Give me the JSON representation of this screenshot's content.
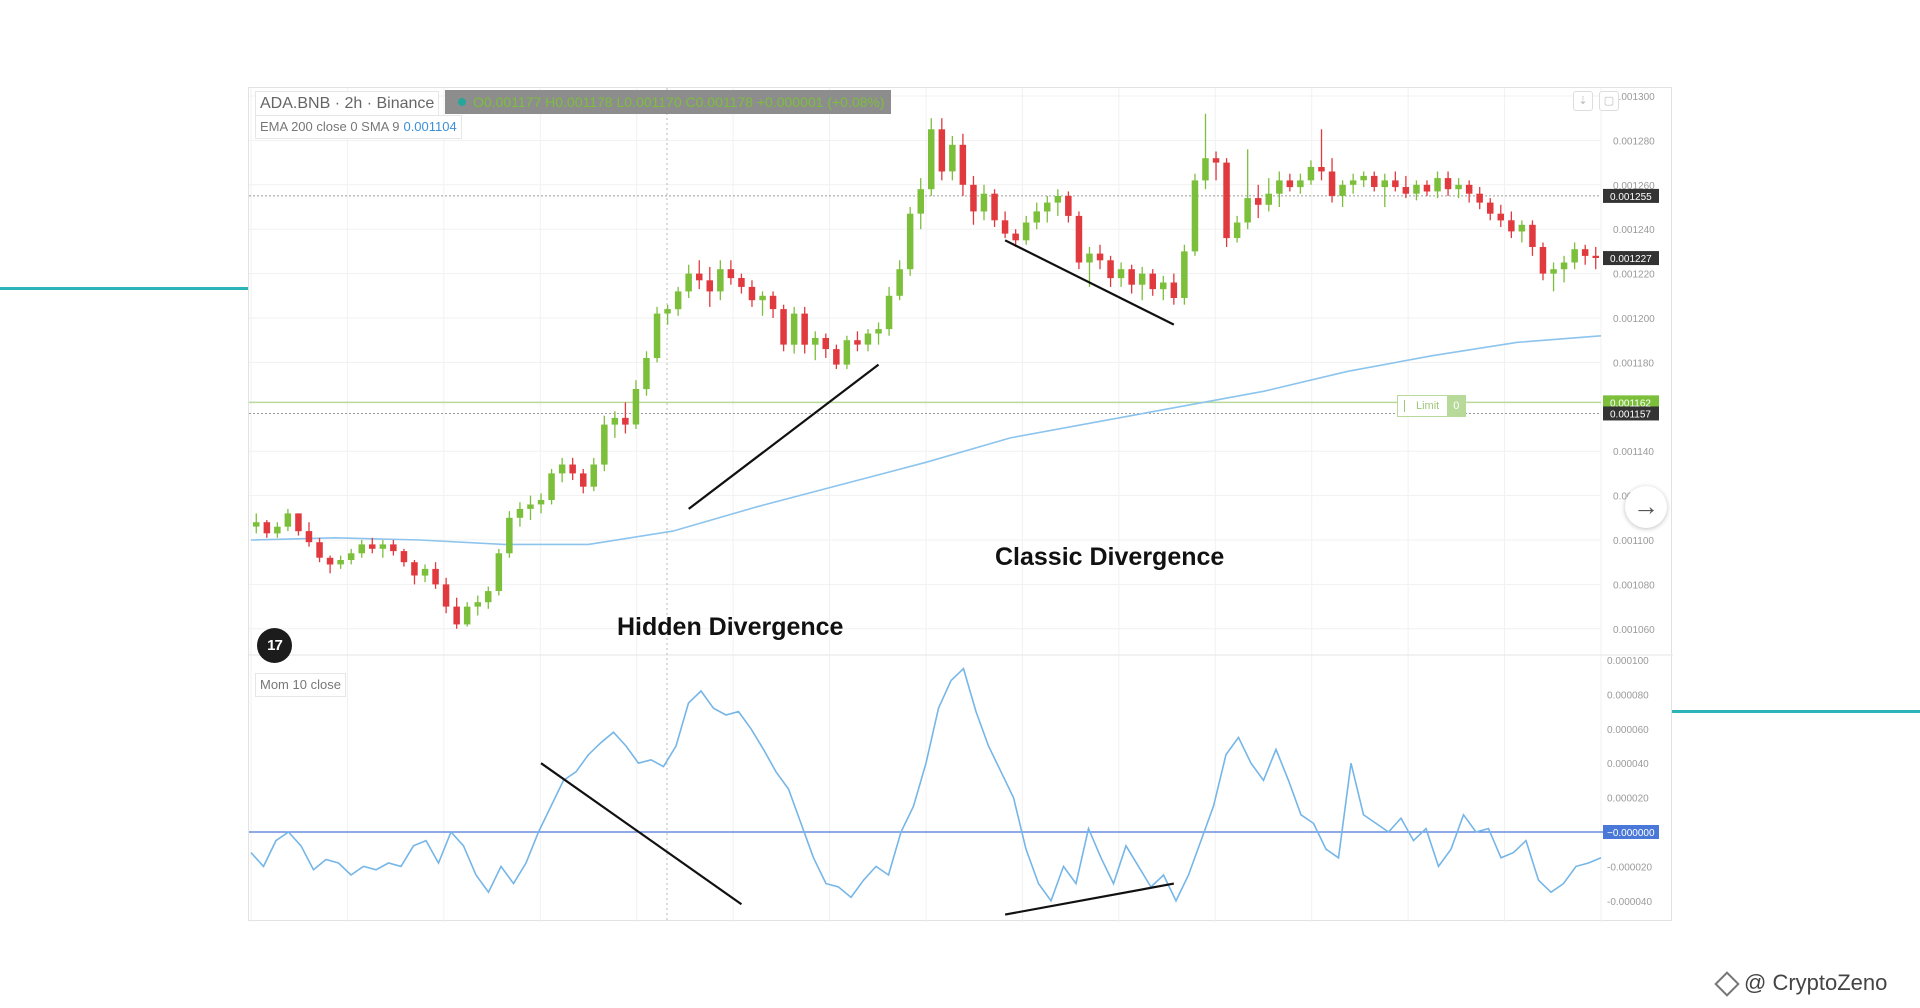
{
  "page": {
    "watermark": "@ CryptoZeno",
    "watermark_icon": "binance-diamond-icon"
  },
  "header": {
    "symbol": "ADA.BNB · 2h · Binance",
    "ohlc": "O0.001177 H0.001178 L0.001170 C0.001178 +0.000001 (+0.08%)",
    "ema_label": "EMA 200 close 0 SMA 9",
    "ema_value": "0.001104",
    "mom_label": "Mom 10 close"
  },
  "annotations": {
    "classic": "Classic Divergence",
    "hidden": "Hidden Divergence"
  },
  "limit_order": {
    "label": "Limit",
    "qty": "0"
  },
  "logo_text": "17",
  "colors": {
    "up": "#7cbf3b",
    "down": "#e0393e",
    "ema": "#8cc4ee",
    "mom": "#75b6e8",
    "zero_line": "#4a78d8",
    "limit": "#7cbf3b",
    "deco": "#2bb3b7"
  },
  "chart_data": {
    "type": "candlestick",
    "price_axis": {
      "ticks": [
        "0.001300",
        "0.001280",
        "0.001260",
        "0.001240",
        "0.001220",
        "0.001200",
        "0.001180",
        "0.001140",
        "0.001120",
        "0.001100",
        "0.001080",
        "0.001060"
      ],
      "ylim": [
        0.00105,
        0.0013
      ],
      "badges": [
        {
          "text": "0.001255",
          "value": 0.001255,
          "color": "#333333"
        },
        {
          "text": "0.001227",
          "value": 0.001227,
          "color": "#333333"
        },
        {
          "text": "0.001162",
          "value": 0.001162,
          "color": "#7cbf3b"
        },
        {
          "text": "0.001157",
          "value": 0.001157,
          "color": "#333333"
        }
      ]
    },
    "candles": [
      [
        0.001106,
        0.001112,
        0.001103,
        0.001108
      ],
      [
        0.001108,
        0.001109,
        0.001101,
        0.001103
      ],
      [
        0.001103,
        0.001108,
        0.001101,
        0.001106
      ],
      [
        0.001106,
        0.001114,
        0.001104,
        0.001112
      ],
      [
        0.001112,
        0.001112,
        0.001102,
        0.001104
      ],
      [
        0.001104,
        0.001108,
        0.001097,
        0.001099
      ],
      [
        0.001099,
        0.001101,
        0.00109,
        0.001092
      ],
      [
        0.001092,
        0.001093,
        0.001085,
        0.001089
      ],
      [
        0.001089,
        0.001093,
        0.001087,
        0.001091
      ],
      [
        0.001091,
        0.001096,
        0.001089,
        0.001094
      ],
      [
        0.001094,
        0.0011,
        0.001092,
        0.001098
      ],
      [
        0.001098,
        0.001101,
        0.001094,
        0.001096
      ],
      [
        0.001096,
        0.0011,
        0.001092,
        0.001098
      ],
      [
        0.001098,
        0.0011,
        0.001093,
        0.001095
      ],
      [
        0.001095,
        0.001096,
        0.001088,
        0.00109
      ],
      [
        0.00109,
        0.001091,
        0.00108,
        0.001084
      ],
      [
        0.001084,
        0.001089,
        0.001081,
        0.001087
      ],
      [
        0.001087,
        0.00109,
        0.001078,
        0.00108
      ],
      [
        0.00108,
        0.001083,
        0.001067,
        0.00107
      ],
      [
        0.00107,
        0.001074,
        0.00106,
        0.001062
      ],
      [
        0.001062,
        0.001072,
        0.001061,
        0.00107
      ],
      [
        0.00107,
        0.001075,
        0.001066,
        0.001072
      ],
      [
        0.001072,
        0.001079,
        0.001069,
        0.001077
      ],
      [
        0.001077,
        0.001096,
        0.001075,
        0.001094
      ],
      [
        0.001094,
        0.001113,
        0.001092,
        0.00111
      ],
      [
        0.00111,
        0.001117,
        0.001106,
        0.001114
      ],
      [
        0.001114,
        0.00112,
        0.001109,
        0.001116
      ],
      [
        0.001116,
        0.001121,
        0.001112,
        0.001118
      ],
      [
        0.001118,
        0.001132,
        0.001116,
        0.00113
      ],
      [
        0.00113,
        0.001137,
        0.001126,
        0.001134
      ],
      [
        0.001134,
        0.001137,
        0.001127,
        0.00113
      ],
      [
        0.00113,
        0.001132,
        0.001121,
        0.001124
      ],
      [
        0.001124,
        0.001137,
        0.001122,
        0.001134
      ],
      [
        0.001134,
        0.001156,
        0.001131,
        0.001152
      ],
      [
        0.001152,
        0.001158,
        0.001146,
        0.001155
      ],
      [
        0.001155,
        0.001162,
        0.001148,
        0.001152
      ],
      [
        0.001152,
        0.001172,
        0.00115,
        0.001168
      ],
      [
        0.001168,
        0.001185,
        0.001165,
        0.001182
      ],
      [
        0.001182,
        0.001205,
        0.00118,
        0.001202
      ],
      [
        0.001202,
        0.001206,
        0.001197,
        0.001204
      ],
      [
        0.001204,
        0.001214,
        0.001201,
        0.001212
      ],
      [
        0.001212,
        0.001224,
        0.001209,
        0.00122
      ],
      [
        0.00122,
        0.001226,
        0.001213,
        0.001217
      ],
      [
        0.001217,
        0.001223,
        0.001205,
        0.001212
      ],
      [
        0.001212,
        0.001226,
        0.001208,
        0.001222
      ],
      [
        0.001222,
        0.001226,
        0.001215,
        0.001218
      ],
      [
        0.001218,
        0.00122,
        0.001211,
        0.001214
      ],
      [
        0.001214,
        0.001217,
        0.001205,
        0.001208
      ],
      [
        0.001208,
        0.001212,
        0.001201,
        0.00121
      ],
      [
        0.00121,
        0.001212,
        0.0012,
        0.001204
      ],
      [
        0.001204,
        0.001206,
        0.001185,
        0.001188
      ],
      [
        0.001188,
        0.001205,
        0.001184,
        0.001202
      ],
      [
        0.001202,
        0.001205,
        0.001184,
        0.001188
      ],
      [
        0.001188,
        0.001194,
        0.001181,
        0.001191
      ],
      [
        0.001191,
        0.001193,
        0.001182,
        0.001186
      ],
      [
        0.001186,
        0.001188,
        0.001177,
        0.001179
      ],
      [
        0.001179,
        0.001192,
        0.001177,
        0.00119
      ],
      [
        0.00119,
        0.001194,
        0.001185,
        0.001188
      ],
      [
        0.001188,
        0.001195,
        0.001185,
        0.001193
      ],
      [
        0.001193,
        0.001198,
        0.001188,
        0.001195
      ],
      [
        0.001195,
        0.001214,
        0.001192,
        0.00121
      ],
      [
        0.00121,
        0.001226,
        0.001208,
        0.001222
      ],
      [
        0.001222,
        0.00125,
        0.001219,
        0.001247
      ],
      [
        0.001247,
        0.001263,
        0.00124,
        0.001258
      ],
      [
        0.001258,
        0.00129,
        0.001255,
        0.001285
      ],
      [
        0.001285,
        0.00129,
        0.001262,
        0.001266
      ],
      [
        0.001266,
        0.001282,
        0.001262,
        0.001278
      ],
      [
        0.001278,
        0.001283,
        0.001255,
        0.00126
      ],
      [
        0.00126,
        0.001264,
        0.001242,
        0.001248
      ],
      [
        0.001248,
        0.00126,
        0.001244,
        0.001256
      ],
      [
        0.001256,
        0.001258,
        0.001241,
        0.001244
      ],
      [
        0.001244,
        0.001248,
        0.001236,
        0.001238
      ],
      [
        0.001238,
        0.00124,
        0.001232,
        0.001235
      ],
      [
        0.001235,
        0.001246,
        0.001233,
        0.001243
      ],
      [
        0.001243,
        0.001252,
        0.00124,
        0.001248
      ],
      [
        0.001248,
        0.001255,
        0.001243,
        0.001252
      ],
      [
        0.001252,
        0.001258,
        0.001246,
        0.001255
      ],
      [
        0.001255,
        0.001257,
        0.001243,
        0.001246
      ],
      [
        0.001246,
        0.001248,
        0.001222,
        0.001225
      ],
      [
        0.001225,
        0.001232,
        0.001214,
        0.001229
      ],
      [
        0.001229,
        0.001233,
        0.001222,
        0.001226
      ],
      [
        0.001226,
        0.001228,
        0.001214,
        0.001218
      ],
      [
        0.001218,
        0.001225,
        0.001214,
        0.001222
      ],
      [
        0.001222,
        0.001224,
        0.001211,
        0.001215
      ],
      [
        0.001215,
        0.001223,
        0.001208,
        0.00122
      ],
      [
        0.00122,
        0.001222,
        0.00121,
        0.001213
      ],
      [
        0.001213,
        0.001219,
        0.001208,
        0.001216
      ],
      [
        0.001216,
        0.00122,
        0.001206,
        0.001209
      ],
      [
        0.001209,
        0.001233,
        0.001206,
        0.00123
      ],
      [
        0.00123,
        0.001265,
        0.001228,
        0.001262
      ],
      [
        0.001262,
        0.001292,
        0.001258,
        0.001272
      ],
      [
        0.001272,
        0.001275,
        0.001262,
        0.00127
      ],
      [
        0.00127,
        0.001272,
        0.001232,
        0.001236
      ],
      [
        0.001236,
        0.001246,
        0.001234,
        0.001243
      ],
      [
        0.001243,
        0.001276,
        0.00124,
        0.001254
      ],
      [
        0.001254,
        0.00126,
        0.001245,
        0.001251
      ],
      [
        0.001251,
        0.001263,
        0.001248,
        0.001256
      ],
      [
        0.001256,
        0.001266,
        0.00125,
        0.001262
      ],
      [
        0.001262,
        0.001265,
        0.001257,
        0.001259
      ],
      [
        0.001259,
        0.001265,
        0.001256,
        0.001262
      ],
      [
        0.001262,
        0.001271,
        0.00126,
        0.001268
      ],
      [
        0.001268,
        0.001285,
        0.001262,
        0.001266
      ],
      [
        0.001266,
        0.001272,
        0.001252,
        0.001255
      ],
      [
        0.001255,
        0.001262,
        0.00125,
        0.00126
      ],
      [
        0.00126,
        0.001265,
        0.001256,
        0.001262
      ],
      [
        0.001262,
        0.001266,
        0.001259,
        0.001264
      ],
      [
        0.001264,
        0.001266,
        0.001257,
        0.001259
      ],
      [
        0.001259,
        0.001265,
        0.00125,
        0.001262
      ],
      [
        0.001262,
        0.001266,
        0.001257,
        0.001259
      ],
      [
        0.001259,
        0.001264,
        0.001254,
        0.001256
      ],
      [
        0.001256,
        0.001262,
        0.001253,
        0.00126
      ],
      [
        0.00126,
        0.001262,
        0.001255,
        0.001257
      ],
      [
        0.001257,
        0.001266,
        0.001254,
        0.001263
      ],
      [
        0.001263,
        0.001266,
        0.001255,
        0.001258
      ],
      [
        0.001258,
        0.001263,
        0.001254,
        0.00126
      ],
      [
        0.00126,
        0.001262,
        0.001252,
        0.001256
      ],
      [
        0.001256,
        0.001259,
        0.001249,
        0.001252
      ],
      [
        0.001252,
        0.001254,
        0.001244,
        0.001247
      ],
      [
        0.001247,
        0.001251,
        0.001241,
        0.001244
      ],
      [
        0.001244,
        0.001248,
        0.001236,
        0.001239
      ],
      [
        0.001239,
        0.001244,
        0.001234,
        0.001242
      ],
      [
        0.001242,
        0.001244,
        0.001228,
        0.001232
      ],
      [
        0.001232,
        0.001234,
        0.001217,
        0.00122
      ],
      [
        0.00122,
        0.001225,
        0.001212,
        0.001222
      ],
      [
        0.001222,
        0.001228,
        0.001216,
        0.001225
      ],
      [
        0.001225,
        0.001234,
        0.001222,
        0.001231
      ],
      [
        0.001231,
        0.001233,
        0.001224,
        0.001228
      ],
      [
        0.001228,
        0.001232,
        0.001222,
        0.001227
      ]
    ],
    "ema200": [
      0.0011,
      0.001101,
      0.0011,
      0.001098,
      0.001098,
      0.001104,
      0.001115,
      0.001125,
      0.001135,
      0.001146,
      0.001153,
      0.00116,
      0.001167,
      0.001176,
      0.001183,
      0.001189,
      0.001192
    ],
    "momentum": {
      "label": "Mom 10 close",
      "ylim": [
        -5e-05,
        0.0001
      ],
      "ticks": [
        "0.000100",
        "0.000080",
        "0.000060",
        "0.000040",
        "0.000020",
        "-0.000020",
        "-0.000040"
      ],
      "zero_badge": "−0.000000",
      "values": [
        -1.2e-05,
        -2e-05,
        -5e-06,
        0.0,
        -8e-06,
        -2.2e-05,
        -1.6e-05,
        -1.8e-05,
        -2.5e-05,
        -2e-05,
        -2.2e-05,
        -1.8e-05,
        -2e-05,
        -8e-06,
        -5e-06,
        -1.8e-05,
        0.0,
        -8e-06,
        -2.5e-05,
        -3.5e-05,
        -2e-05,
        -3e-05,
        -1.8e-05,
        0.0,
        1.5e-05,
        3e-05,
        3.5e-05,
        4.5e-05,
        5.2e-05,
        5.8e-05,
        5e-05,
        4e-05,
        4.2e-05,
        3.8e-05,
        5e-05,
        7.5e-05,
        8.2e-05,
        7.2e-05,
        6.8e-05,
        7e-05,
        6e-05,
        4.8e-05,
        3.5e-05,
        2.5e-05,
        5e-06,
        -1.5e-05,
        -3e-05,
        -3.2e-05,
        -3.8e-05,
        -2.8e-05,
        -2e-05,
        -2.5e-05,
        0.0,
        1.5e-05,
        4e-05,
        7.2e-05,
        8.8e-05,
        9.5e-05,
        7e-05,
        5e-05,
        3.5e-05,
        2e-05,
        -1e-05,
        -3e-05,
        -4e-05,
        -2e-05,
        -3e-05,
        2e-06,
        -1.5e-05,
        -3e-05,
        -8e-06,
        -2e-05,
        -3.2e-05,
        -2.5e-05,
        -4e-05,
        -2.5e-05,
        -5e-06,
        1.5e-05,
        4.5e-05,
        5.5e-05,
        4e-05,
        3e-05,
        4.8e-05,
        3e-05,
        1e-05,
        5e-06,
        -1e-05,
        -1.5e-05,
        4e-05,
        1e-05,
        5e-06,
        0.0,
        8e-06,
        -5e-06,
        2e-06,
        -2e-05,
        -1e-05,
        1e-05,
        0.0,
        2e-06,
        -1.5e-05,
        -1.2e-05,
        -5e-06,
        -2.8e-05,
        -3.5e-05,
        -3e-05,
        -2e-05,
        -1.8e-05,
        -1.5e-05
      ]
    },
    "divergence_lines": [
      {
        "pane": "price",
        "x0": 41.5,
        "y0": 0.001114,
        "x1": 59.5,
        "y1": 0.001179
      },
      {
        "pane": "price",
        "x0": 71.5,
        "y0": 0.001235,
        "x1": 87.5,
        "y1": 0.001197
      },
      {
        "pane": "momentum",
        "x0": 27.5,
        "y0": 4e-05,
        "x1": 46.5,
        "y1": -4.2e-05
      },
      {
        "pane": "momentum",
        "x0": 71.5,
        "y0": -4.8e-05,
        "x1": 87.5,
        "y1": -3e-05
      }
    ]
  }
}
